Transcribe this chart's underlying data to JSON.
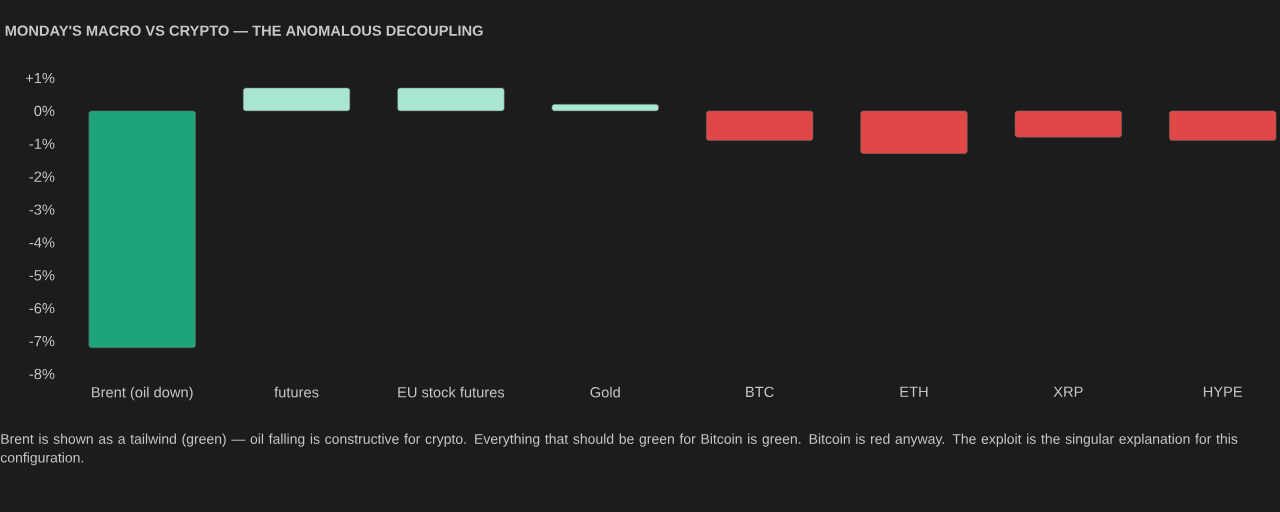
{
  "chart_data": {
    "type": "bar",
    "title": "MONDAY'S MACRO VS CRYPTO — THE ANOMALOUS DECOUPLING",
    "categories": [
      "Brent (oil down)",
      "futures",
      "EU stock futures",
      "Gold",
      "BTC",
      "ETH",
      "XRP",
      "HYPE"
    ],
    "values": [
      -7.2,
      0.7,
      0.7,
      0.2,
      -0.9,
      -1.3,
      -0.8,
      -0.9
    ],
    "colors": [
      "#1fa37a",
      "#a8e6cf",
      "#a8e6cf",
      "#a8e6cf",
      "#e04848",
      "#e04848",
      "#e04848",
      "#e04848"
    ],
    "ylim": [
      -8,
      1
    ],
    "yticks": [
      {
        "value": 1,
        "label": "+1%"
      },
      {
        "value": 0,
        "label": "0%"
      },
      {
        "value": -1,
        "label": "-1%"
      },
      {
        "value": -2,
        "label": "-2%"
      },
      {
        "value": -3,
        "label": "-3%"
      },
      {
        "value": -4,
        "label": "-4%"
      },
      {
        "value": -5,
        "label": "-5%"
      },
      {
        "value": -6,
        "label": "-6%"
      },
      {
        "value": -7,
        "label": "-7%"
      },
      {
        "value": -8,
        "label": "-8%"
      }
    ],
    "annotations": [
      "Brent is shown as a tailwind (green) — oil falling is constructive for crypto. Everything that should be green for Bitcoin is green. Bitcoin is red anyway. The exploit is the singular explanation for this configuration."
    ]
  }
}
